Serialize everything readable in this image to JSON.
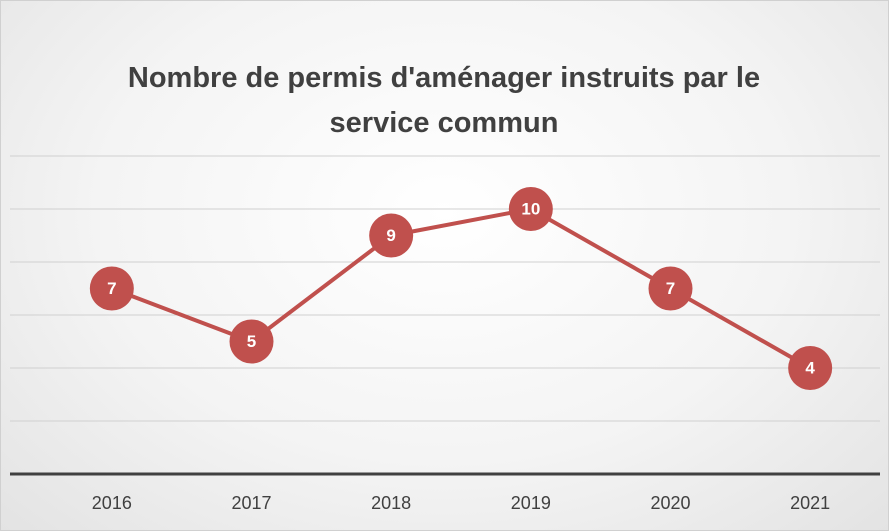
{
  "chart_data": {
    "type": "line",
    "title": "Nombre de permis d'aménager instruits par le service commun",
    "categories": [
      "2016",
      "2017",
      "2018",
      "2019",
      "2020",
      "2021"
    ],
    "values": [
      7,
      5,
      9,
      10,
      7,
      4
    ],
    "color": "#c0504d",
    "ylim": [
      0,
      12
    ],
    "yticks": [
      0,
      2,
      4,
      6,
      8,
      10,
      12
    ],
    "grid": true
  }
}
